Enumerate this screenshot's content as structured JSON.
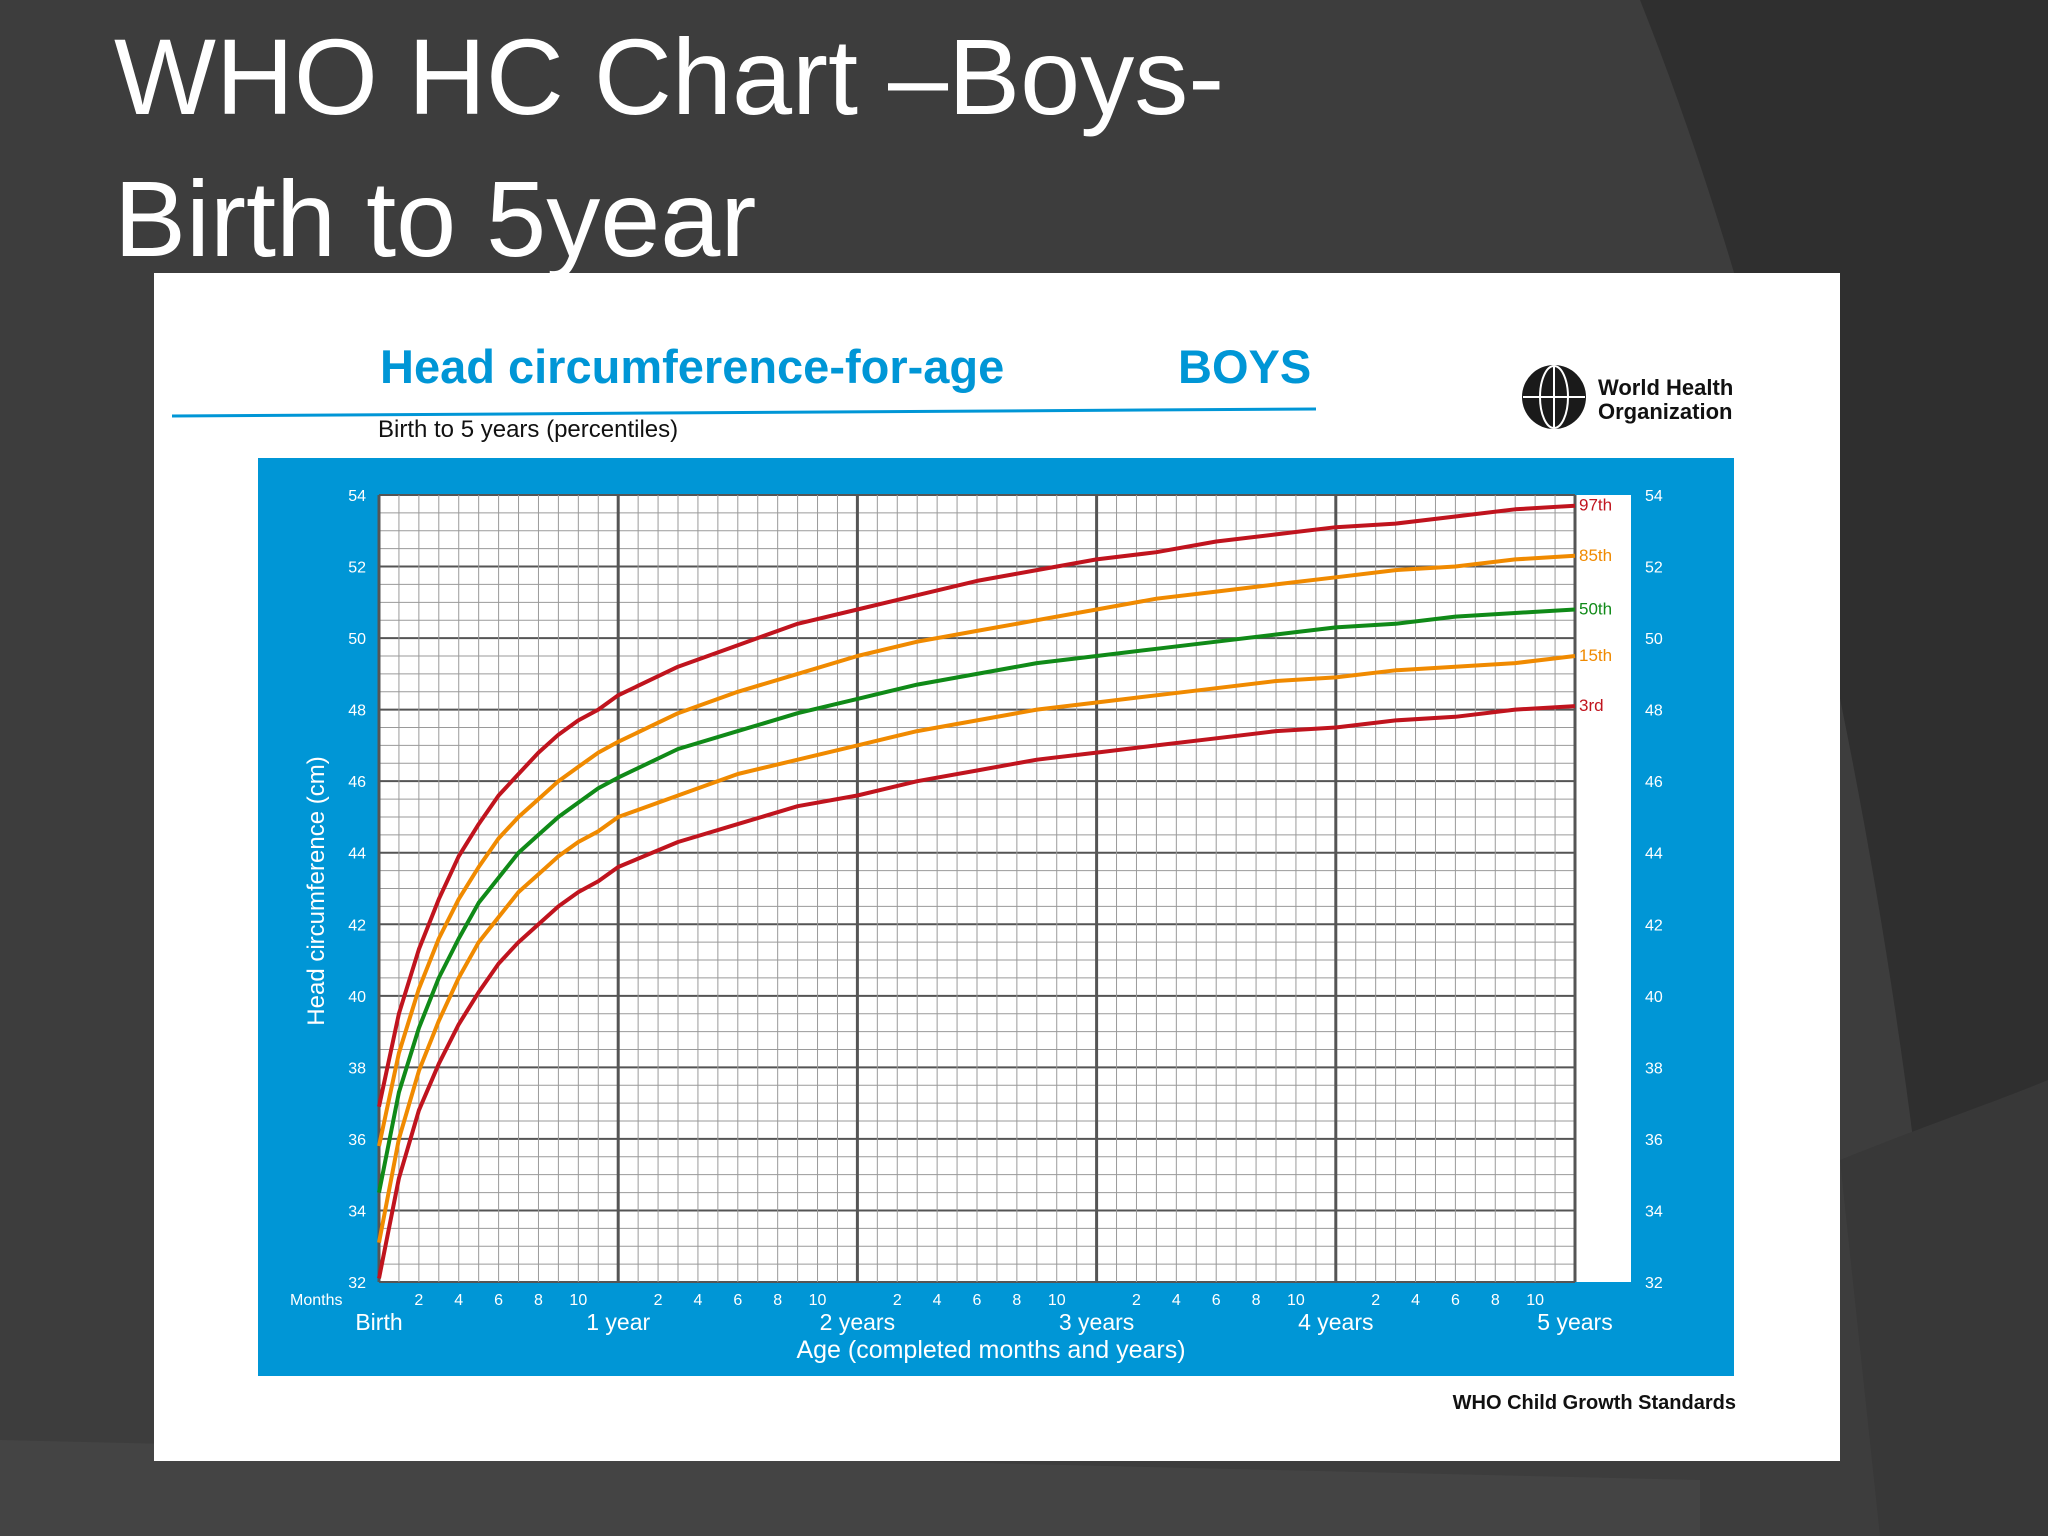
{
  "slide": {
    "title_line1": "WHO HC Chart –Boys-",
    "title_line2": "Birth to 5year"
  },
  "colors": {
    "background": "#3d3d3d",
    "chart_panel": "#0096d6",
    "title_blue": "#0096d6",
    "p97": "#c0141e",
    "p85": "#f08a00",
    "p50": "#108a18",
    "p15": "#f08a00",
    "p3": "#c0141e"
  },
  "logo": {
    "line1": "World Health",
    "line2": "Organization"
  },
  "chart_data": {
    "type": "line",
    "title": "Head circumference-for-age",
    "title_emphasis": "BOYS",
    "subtitle": "Birth to 5 years (percentiles)",
    "ylabel": "Head circumference (cm)",
    "xlabel": "Age (completed months and years)",
    "months_label": "Months",
    "footer": "WHO Child Growth Standards",
    "xlim": [
      0,
      60
    ],
    "ylim": [
      32,
      54
    ],
    "y_ticks": [
      "32",
      "34",
      "36",
      "38",
      "40",
      "42",
      "44",
      "46",
      "48",
      "50",
      "52",
      "54"
    ],
    "month_ticks": [
      "2",
      "4",
      "6",
      "8",
      "10"
    ],
    "year_labels": [
      "Birth",
      "1 year",
      "2 years",
      "3 years",
      "4 years",
      "5 years"
    ],
    "grid": true,
    "x": [
      0,
      1,
      2,
      3,
      4,
      5,
      6,
      7,
      8,
      9,
      10,
      11,
      12,
      15,
      18,
      21,
      24,
      27,
      30,
      33,
      36,
      39,
      42,
      45,
      48,
      51,
      54,
      57,
      60
    ],
    "series": [
      {
        "name": "97th",
        "color_key": "p97",
        "values": [
          36.9,
          39.5,
          41.3,
          42.7,
          43.9,
          44.8,
          45.6,
          46.2,
          46.8,
          47.3,
          47.7,
          48.0,
          48.4,
          49.2,
          49.8,
          50.4,
          50.8,
          51.2,
          51.6,
          51.9,
          52.2,
          52.4,
          52.7,
          52.9,
          53.1,
          53.2,
          53.4,
          53.6,
          53.7
        ]
      },
      {
        "name": "85th",
        "color_key": "p85",
        "values": [
          35.8,
          38.4,
          40.2,
          41.6,
          42.7,
          43.6,
          44.4,
          45.0,
          45.5,
          46.0,
          46.4,
          46.8,
          47.1,
          47.9,
          48.5,
          49.0,
          49.5,
          49.9,
          50.2,
          50.5,
          50.8,
          51.1,
          51.3,
          51.5,
          51.7,
          51.9,
          52.0,
          52.2,
          52.3
        ]
      },
      {
        "name": "50th",
        "color_key": "p50",
        "values": [
          34.5,
          37.3,
          39.1,
          40.5,
          41.6,
          42.6,
          43.3,
          44.0,
          44.5,
          45.0,
          45.4,
          45.8,
          46.1,
          46.9,
          47.4,
          47.9,
          48.3,
          48.7,
          49.0,
          49.3,
          49.5,
          49.7,
          49.9,
          50.1,
          50.3,
          50.4,
          50.6,
          50.7,
          50.8
        ]
      },
      {
        "name": "15th",
        "color_key": "p15",
        "values": [
          33.1,
          36.0,
          37.9,
          39.3,
          40.5,
          41.5,
          42.2,
          42.9,
          43.4,
          43.9,
          44.3,
          44.6,
          45.0,
          45.6,
          46.2,
          46.6,
          47.0,
          47.4,
          47.7,
          48.0,
          48.2,
          48.4,
          48.6,
          48.8,
          48.9,
          49.1,
          49.2,
          49.3,
          49.5
        ]
      },
      {
        "name": "3rd",
        "color_key": "p3",
        "values": [
          32.1,
          34.9,
          36.8,
          38.1,
          39.2,
          40.1,
          40.9,
          41.5,
          42.0,
          42.5,
          42.9,
          43.2,
          43.6,
          44.3,
          44.8,
          45.3,
          45.6,
          46.0,
          46.3,
          46.6,
          46.8,
          47.0,
          47.2,
          47.4,
          47.5,
          47.7,
          47.8,
          48.0,
          48.1
        ]
      }
    ]
  }
}
